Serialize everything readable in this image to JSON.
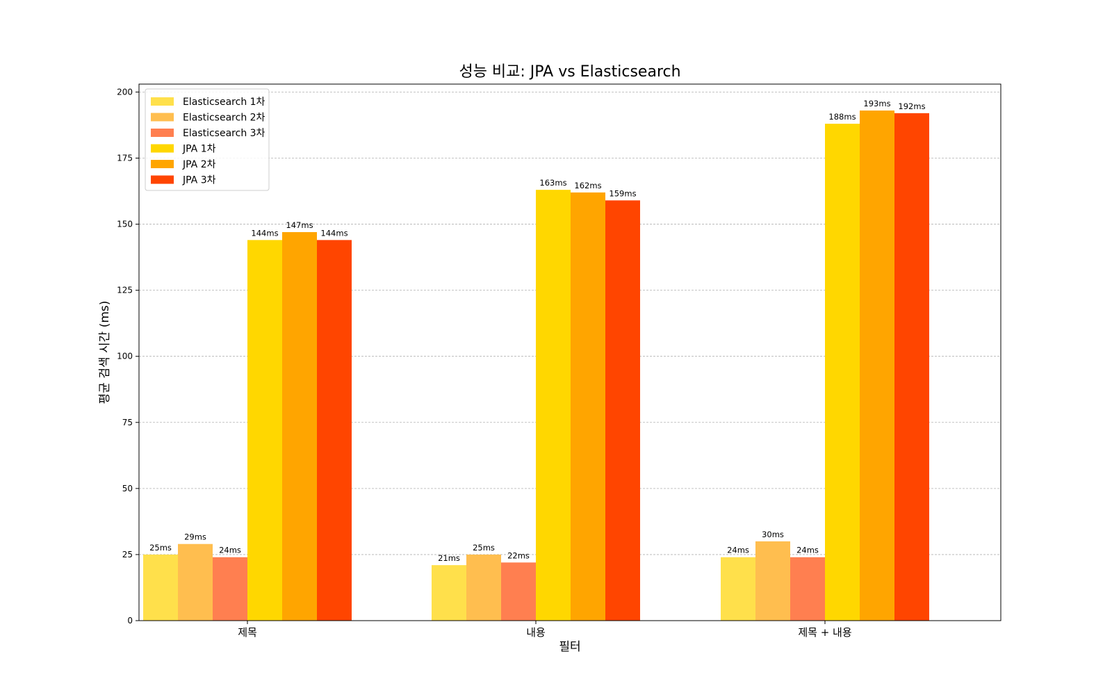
{
  "chart_data": {
    "type": "bar",
    "title": "성능 비교: JPA vs Elasticsearch",
    "xlabel": "필터",
    "ylabel": "평균 검색 시간 (ms)",
    "categories": [
      "제목",
      "내용",
      "제목 + 내용"
    ],
    "ylim": [
      0,
      203
    ],
    "yticks": [
      0,
      25,
      50,
      75,
      100,
      125,
      150,
      175,
      200
    ],
    "grid": "y-dashed",
    "legend_position": "top-left",
    "value_suffix": "ms",
    "series": [
      {
        "name": "Elasticsearch 1차",
        "color": "#FFE04B",
        "values": [
          25,
          21,
          24
        ]
      },
      {
        "name": "Elasticsearch 2차",
        "color": "#FFBE4F",
        "values": [
          29,
          25,
          30
        ]
      },
      {
        "name": "Elasticsearch 3차",
        "color": "#FF7F50",
        "values": [
          24,
          22,
          24
        ]
      },
      {
        "name": "JPA 1차",
        "color": "#FFD700",
        "values": [
          144,
          163,
          188
        ]
      },
      {
        "name": "JPA 2차",
        "color": "#FFA500",
        "values": [
          147,
          162,
          193
        ]
      },
      {
        "name": "JPA 3차",
        "color": "#FF4500",
        "values": [
          144,
          159,
          192
        ]
      }
    ]
  }
}
